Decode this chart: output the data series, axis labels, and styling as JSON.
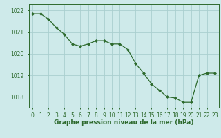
{
  "x": [
    0,
    1,
    2,
    3,
    4,
    5,
    6,
    7,
    8,
    9,
    10,
    11,
    12,
    13,
    14,
    15,
    16,
    17,
    18,
    19,
    20,
    21,
    22,
    23
  ],
  "y": [
    1021.85,
    1021.85,
    1021.6,
    1021.2,
    1020.9,
    1020.45,
    1020.35,
    1020.45,
    1020.6,
    1020.6,
    1020.45,
    1020.45,
    1020.2,
    1019.55,
    1019.1,
    1018.6,
    1018.3,
    1018.0,
    1017.95,
    1017.75,
    1017.75,
    1019.0,
    1019.1,
    1019.1
  ],
  "line_color": "#2d6a2d",
  "marker": "D",
  "marker_size": 2.0,
  "background_color": "#ceeaea",
  "grid_color": "#aacfcf",
  "ylim": [
    1017.5,
    1022.3
  ],
  "yticks": [
    1018,
    1019,
    1020,
    1021,
    1022
  ],
  "xlim": [
    -0.5,
    23.5
  ],
  "xlabel": "Graphe pression niveau de la mer (hPa)",
  "xlabel_fontsize": 6.5,
  "tick_fontsize": 5.5,
  "line_width": 0.9
}
